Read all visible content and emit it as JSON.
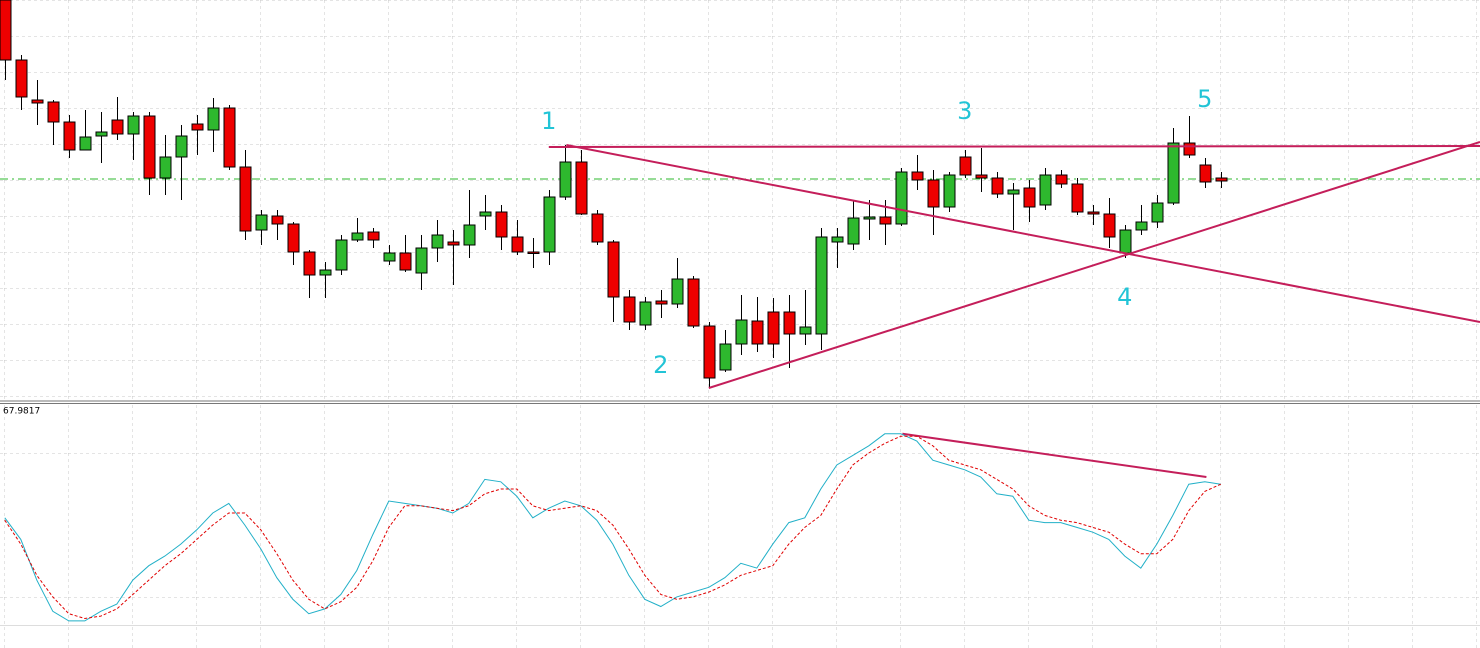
{
  "chart_data": [
    {
      "type": "candlestick",
      "open": [
        400,
        340,
        300,
        298,
        278,
        250,
        264,
        280,
        266,
        284,
        222,
        243,
        276,
        270,
        292,
        233,
        170,
        184,
        176,
        148,
        125,
        130,
        160,
        168,
        139,
        147,
        127,
        152,
        158,
        155,
        184,
        188,
        163,
        148,
        148,
        203,
        238,
        186,
        158,
        103,
        75,
        99,
        96,
        121,
        74,
        30,
        56,
        79,
        88,
        88,
        66,
        66,
        158,
        156,
        181,
        183,
        176,
        228,
        220,
        193,
        243,
        225,
        222,
        206,
        212,
        195,
        225,
        216,
        188,
        186,
        147,
        170,
        178,
        197,
        257,
        235,
        222
      ],
      "high": [
        400,
        345,
        320,
        300,
        285,
        290,
        288,
        303,
        288,
        288,
        265,
        275,
        285,
        302,
        295,
        250,
        190,
        190,
        178,
        150,
        138,
        165,
        182,
        172,
        155,
        165,
        165,
        180,
        170,
        210,
        205,
        195,
        180,
        162,
        210,
        255,
        250,
        190,
        160,
        110,
        103,
        110,
        142,
        124,
        78,
        70,
        105,
        103,
        102,
        105,
        110,
        172,
        172,
        200,
        200,
        200,
        232,
        245,
        230,
        228,
        250,
        252,
        228,
        217,
        220,
        232,
        230,
        222,
        195,
        202,
        175,
        195,
        205,
        272,
        284,
        242,
        228
      ],
      "low": [
        320,
        290,
        275,
        255,
        242,
        250,
        237,
        260,
        240,
        205,
        205,
        200,
        245,
        248,
        230,
        160,
        155,
        160,
        135,
        102,
        102,
        125,
        158,
        152,
        135,
        128,
        110,
        138,
        115,
        142,
        170,
        150,
        145,
        132,
        135,
        200,
        185,
        155,
        78,
        70,
        70,
        82,
        92,
        72,
        12,
        28,
        45,
        48,
        42,
        32,
        55,
        50,
        132,
        150,
        160,
        155,
        174,
        210,
        165,
        188,
        222,
        208,
        202,
        170,
        178,
        190,
        212,
        185,
        175,
        152,
        142,
        165,
        172,
        195,
        242,
        212,
        212
      ],
      "close": [
        340,
        303,
        297,
        278,
        250,
        263,
        268,
        266,
        284,
        222,
        243,
        264,
        270,
        292,
        233,
        169,
        185,
        176,
        148,
        125,
        130,
        160,
        167,
        160,
        147,
        130,
        152,
        165,
        155,
        175,
        188,
        163,
        148,
        147,
        203,
        238,
        186,
        158,
        103,
        78,
        98,
        96,
        121,
        74,
        22,
        56,
        80,
        56,
        56,
        66,
        73,
        163,
        163,
        182,
        183,
        176,
        228,
        220,
        193,
        225,
        225,
        222,
        206,
        210,
        193,
        225,
        216,
        188,
        186,
        163,
        170,
        178,
        197,
        257,
        245,
        218,
        219
      ],
      "up_color": "#2eb82e",
      "down_color": "#ee0000",
      "xlim": [
        -0.3,
        92.2
      ],
      "ylim": [
        0,
        400
      ],
      "hlines": [
        {
          "value": 221,
          "color": "#2eb82e"
        }
      ],
      "lines": [
        {
          "x": [
            35.1,
            92.2
          ],
          "y": [
            255,
            78
          ],
          "color": "#c41e5a"
        },
        {
          "x": [
            34,
            92.2
          ],
          "y": [
            253,
            254
          ],
          "color": "#c41e5a"
        },
        {
          "x": [
            44,
            92.2
          ],
          "y": [
            12,
            258
          ],
          "color": "#c41e5a"
        }
      ],
      "annotations": [
        {
          "text": "1",
          "x": 34,
          "y": 278
        },
        {
          "text": "2",
          "x": 41,
          "y": 34
        },
        {
          "text": "3",
          "x": 60,
          "y": 288
        },
        {
          "text": "4",
          "x": 70,
          "y": 102
        },
        {
          "text": "5",
          "x": 75,
          "y": 300
        }
      ]
    },
    {
      "type": "line",
      "title": "67.9817",
      "xlim": [
        -0.3,
        92.2
      ],
      "ylim": [
        8.3,
        100
      ],
      "series": [
        {
          "color": "#22b0c8",
          "dash": false,
          "values": [
            53,
            44,
            27,
            14,
            10,
            10,
            14,
            17,
            27,
            33,
            37,
            42,
            48,
            55,
            59,
            50,
            40,
            28,
            19,
            13,
            15,
            21,
            31,
            46,
            60,
            59,
            58,
            57,
            55,
            59,
            69,
            68,
            62,
            53,
            57,
            60,
            58,
            52,
            42,
            29,
            19,
            16,
            20,
            22,
            24,
            28,
            34,
            32,
            42,
            51,
            53,
            65,
            75,
            79,
            83,
            88,
            88,
            85,
            77,
            75,
            73,
            70,
            63,
            62,
            52,
            51,
            51,
            49,
            47,
            44,
            37,
            32,
            42,
            54,
            67,
            68,
            67
          ]
        },
        {
          "color": "#e00000",
          "dash": true,
          "values": [
            52,
            42,
            29,
            20,
            13,
            11,
            12,
            15,
            21,
            27,
            33,
            38,
            44,
            50,
            55,
            55,
            48,
            38,
            27,
            19,
            15,
            18,
            24,
            35,
            49,
            58,
            58,
            57,
            56,
            58,
            63,
            65,
            65,
            58,
            56,
            57,
            58,
            56,
            50,
            40,
            29,
            21,
            19,
            20,
            22,
            25,
            29,
            31,
            33,
            42,
            49,
            54,
            65,
            75,
            80,
            84,
            87,
            87,
            83,
            77,
            75,
            73,
            69,
            65,
            58,
            54,
            52,
            51,
            49,
            47,
            42,
            38,
            38,
            44,
            56,
            64,
            67
          ]
        }
      ],
      "lines": [
        {
          "x": [
            56.1,
            75.1
          ],
          "y": [
            88,
            70
          ],
          "color": "#c41e5a"
        }
      ]
    }
  ]
}
